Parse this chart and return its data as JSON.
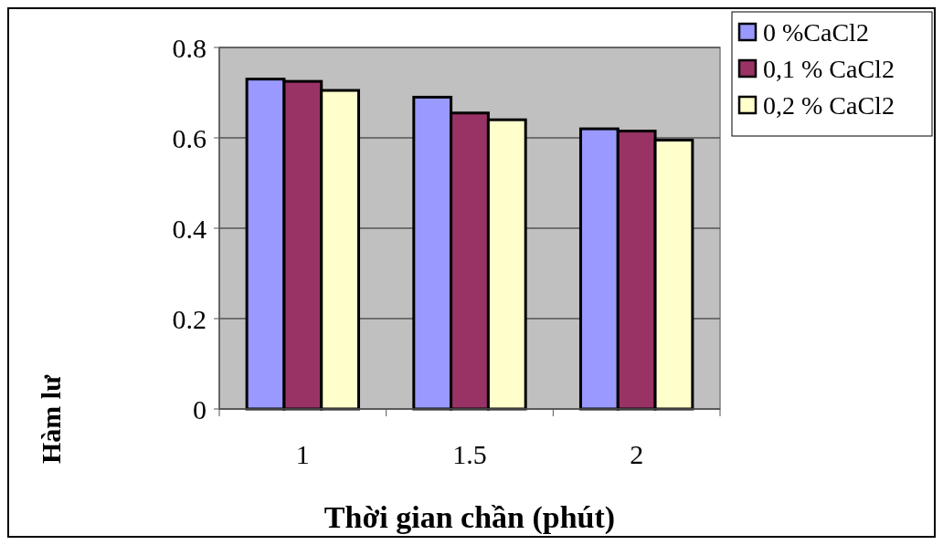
{
  "chart_data": {
    "type": "bar",
    "xlabel": "Thời gian chần (phút)",
    "ylabel": "Hàm lư",
    "categories": [
      "1",
      "1.5",
      "2"
    ],
    "series": [
      {
        "name": "0 %CaCl2",
        "color": "#9999ff",
        "values": [
          0.73,
          0.69,
          0.62
        ]
      },
      {
        "name": "0,1 % CaCl2",
        "color": "#993366",
        "values": [
          0.725,
          0.655,
          0.615
        ]
      },
      {
        "name": "0,2 % CaCl2",
        "color": "#ffffcc",
        "values": [
          0.705,
          0.64,
          0.595
        ]
      }
    ],
    "ylim": [
      0,
      0.8
    ],
    "yticks": [
      0,
      0.2,
      0.4,
      0.6,
      0.8
    ],
    "grid": "y",
    "legend": "top right"
  }
}
